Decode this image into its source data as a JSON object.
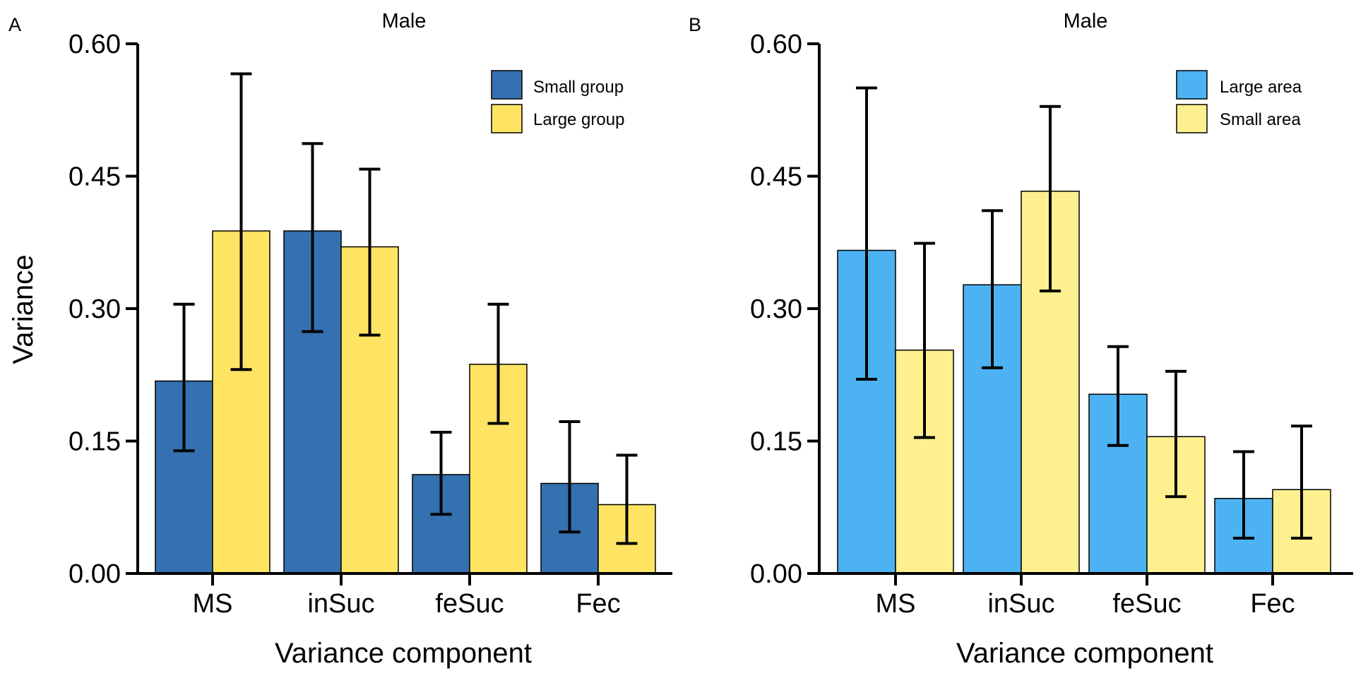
{
  "y_axis_label": "Variance",
  "chart_data": [
    {
      "type": "bar",
      "panel_label": "A",
      "title": "Male",
      "xlabel": "Variance component",
      "ylabel": "Variance",
      "ylim": [
        0,
        0.6
      ],
      "yticks": [
        "0.00",
        "0.15",
        "0.30",
        "0.45",
        "0.60"
      ],
      "categories": [
        "MS",
        "inSuc",
        "feSuc",
        "Fec"
      ],
      "legend_position": "top-right",
      "grid": false,
      "series": [
        {
          "name": "Small group",
          "color": "#3571b0",
          "values": [
            0.218,
            0.388,
            0.112,
            0.102
          ],
          "ci_low": [
            0.139,
            0.274,
            0.067,
            0.047
          ],
          "ci_high": [
            0.305,
            0.487,
            0.16,
            0.172
          ]
        },
        {
          "name": "Large group",
          "color": "#fee462",
          "values": [
            0.388,
            0.37,
            0.237,
            0.078
          ],
          "ci_low": [
            0.231,
            0.27,
            0.17,
            0.034
          ],
          "ci_high": [
            0.566,
            0.458,
            0.305,
            0.134
          ]
        }
      ]
    },
    {
      "type": "bar",
      "panel_label": "B",
      "title": "Male",
      "xlabel": "Variance component",
      "ylabel": "",
      "ylim": [
        0,
        0.6
      ],
      "yticks": [
        "0.00",
        "0.15",
        "0.30",
        "0.45",
        "0.60"
      ],
      "categories": [
        "MS",
        "inSuc",
        "feSuc",
        "Fec"
      ],
      "legend_position": "top-right",
      "grid": false,
      "series": [
        {
          "name": "Large area",
          "color": "#4cb2f2",
          "values": [
            0.366,
            0.327,
            0.203,
            0.085
          ],
          "ci_low": [
            0.22,
            0.233,
            0.145,
            0.04
          ],
          "ci_high": [
            0.55,
            0.411,
            0.257,
            0.138
          ]
        },
        {
          "name": "Small area",
          "color": "#fef08e",
          "values": [
            0.253,
            0.433,
            0.155,
            0.095
          ],
          "ci_low": [
            0.154,
            0.32,
            0.087,
            0.04
          ],
          "ci_high": [
            0.374,
            0.529,
            0.229,
            0.167
          ]
        }
      ]
    }
  ]
}
